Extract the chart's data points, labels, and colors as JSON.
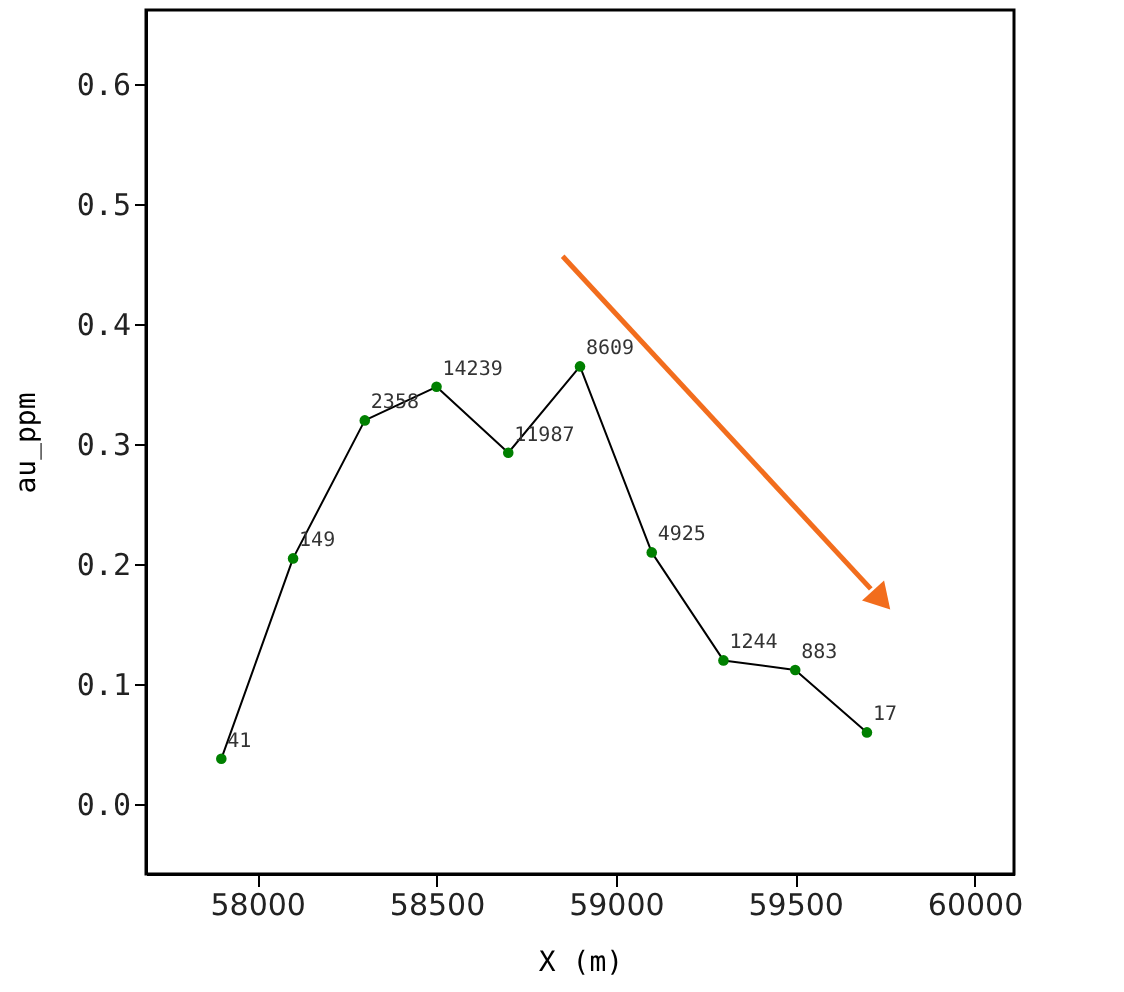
{
  "chart_data": {
    "type": "line",
    "xlabel": "X (m)",
    "ylabel": "au_ppm",
    "x": [
      57900,
      58100,
      58300,
      58500,
      58700,
      58900,
      59100,
      59300,
      59500,
      59700
    ],
    "series": [
      {
        "color": "#000000",
        "marker": "none",
        "values": [
          0.038,
          0.205,
          0.32,
          0.348,
          0.293,
          0.365,
          0.21,
          0.12,
          0.112,
          0.06
        ]
      },
      {
        "type": "scatter",
        "color": "#008000",
        "marker": "circle",
        "values": [
          0.038,
          0.205,
          0.32,
          0.348,
          0.293,
          0.365,
          0.21,
          0.12,
          0.112,
          0.06
        ]
      }
    ],
    "annotations": [
      {
        "text": "41",
        "x": 57900,
        "y": 0.038
      },
      {
        "text": "149",
        "x": 58100,
        "y": 0.205
      },
      {
        "text": "2358",
        "x": 58300,
        "y": 0.32
      },
      {
        "text": "14239",
        "x": 58500,
        "y": 0.348
      },
      {
        "text": "11987",
        "x": 58700,
        "y": 0.293
      },
      {
        "text": "8609",
        "x": 58900,
        "y": 0.365
      },
      {
        "text": "4925",
        "x": 59100,
        "y": 0.21
      },
      {
        "text": "1244",
        "x": 59300,
        "y": 0.12
      },
      {
        "text": "883",
        "x": 59500,
        "y": 0.112
      },
      {
        "text": "17",
        "x": 59700,
        "y": 0.06
      }
    ],
    "line_style": "solid",
    "xlim": [
      57690,
      60110
    ],
    "xticks": [
      58000,
      58500,
      59000,
      59500,
      60000
    ],
    "ylim": [
      -0.058,
      0.662
    ],
    "yticks": [
      {
        "value": 0.0,
        "label": "0.0"
      },
      0.1,
      0.2,
      0.3,
      0.4,
      0.5,
      0.6
    ],
    "grid": false
  }
}
